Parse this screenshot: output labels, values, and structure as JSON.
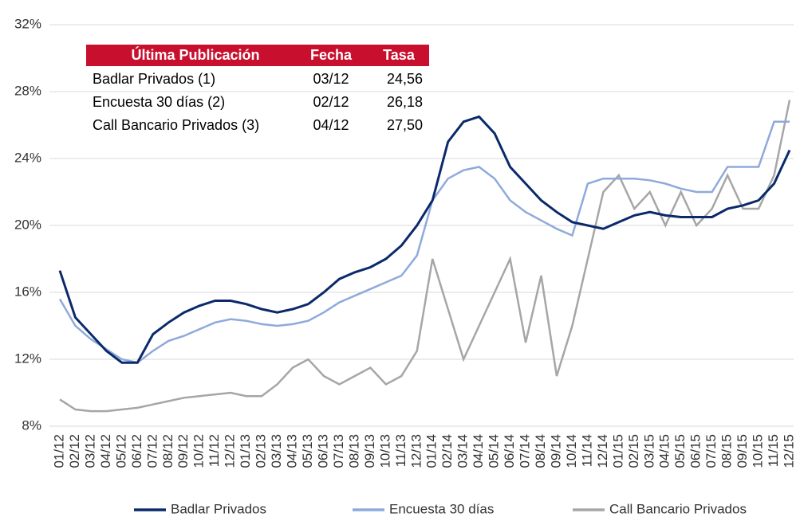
{
  "chart_data": {
    "type": "line",
    "x": [
      "01/12",
      "02/12",
      "03/12",
      "04/12",
      "05/12",
      "06/12",
      "07/12",
      "08/12",
      "09/12",
      "10/12",
      "11/12",
      "12/12",
      "01/13",
      "02/13",
      "03/13",
      "04/13",
      "05/13",
      "06/13",
      "07/13",
      "08/13",
      "09/13",
      "10/13",
      "11/13",
      "12/13",
      "01/14",
      "02/14",
      "03/14",
      "04/14",
      "05/14",
      "06/14",
      "07/14",
      "08/14",
      "09/14",
      "10/14",
      "11/14",
      "12/14",
      "01/15",
      "02/15",
      "03/15",
      "04/15",
      "05/15",
      "06/15",
      "07/15",
      "08/15",
      "09/15",
      "10/15",
      "11/15",
      "12/15"
    ],
    "series": [
      {
        "name": "Badlar Privados",
        "color": "#0b2a6b",
        "values": [
          17.3,
          14.5,
          13.5,
          12.5,
          11.8,
          11.8,
          13.5,
          14.2,
          14.8,
          15.2,
          15.5,
          15.5,
          15.3,
          15.0,
          14.8,
          15.0,
          15.3,
          16.0,
          16.8,
          17.2,
          17.5,
          18.0,
          18.8,
          20.0,
          21.5,
          25.0,
          26.2,
          26.5,
          25.5,
          23.5,
          22.5,
          21.5,
          20.8,
          20.2,
          20.0,
          19.8,
          20.2,
          20.6,
          20.8,
          20.6,
          20.5,
          20.5,
          20.5,
          21.0,
          21.2,
          21.5,
          22.5,
          24.5
        ]
      },
      {
        "name": "Encuesta 30 días",
        "color": "#8eaadb",
        "values": [
          15.6,
          14.0,
          13.2,
          12.6,
          12.0,
          11.8,
          12.5,
          13.1,
          13.4,
          13.8,
          14.2,
          14.4,
          14.3,
          14.1,
          14.0,
          14.1,
          14.3,
          14.8,
          15.4,
          15.8,
          16.2,
          16.6,
          17.0,
          18.2,
          21.5,
          22.8,
          23.3,
          23.5,
          22.8,
          21.5,
          20.8,
          20.3,
          19.8,
          19.4,
          22.5,
          22.8,
          22.8,
          22.8,
          22.7,
          22.5,
          22.2,
          22.0,
          22.0,
          23.5,
          23.5,
          23.5,
          26.2,
          26.2
        ]
      },
      {
        "name": "Call Bancario Privados",
        "color": "#a6a6a6",
        "values": [
          9.6,
          9.0,
          8.9,
          8.9,
          9.0,
          9.1,
          9.3,
          9.5,
          9.7,
          9.8,
          9.9,
          10.0,
          9.8,
          9.8,
          10.5,
          11.5,
          12.0,
          11.0,
          10.5,
          11.0,
          11.5,
          10.5,
          11.0,
          12.5,
          18.0,
          15.0,
          12.0,
          14.0,
          16.0,
          18.0,
          13.0,
          17.0,
          11.0,
          14.0,
          18.0,
          22.0,
          23.0,
          21.0,
          22.0,
          20.0,
          22.0,
          20.0,
          21.0,
          23.0,
          21.0,
          21.0,
          23.0,
          27.5
        ]
      }
    ],
    "ylim": [
      8,
      32
    ],
    "yticks": [
      {
        "value": 8,
        "label": "8%"
      },
      {
        "value": 12,
        "label": "12%"
      },
      {
        "value": 16,
        "label": "16%"
      },
      {
        "value": 20,
        "label": "20%"
      },
      {
        "value": 24,
        "label": "24%"
      },
      {
        "value": 28,
        "label": "28%"
      },
      {
        "value": 32,
        "label": "32%"
      }
    ],
    "grid": true,
    "legend": "bottom",
    "table": {
      "header_color": "#c8102e",
      "header": [
        "Última Publicación",
        "Fecha",
        "Tasa"
      ],
      "rows": [
        [
          "Badlar Privados (1)",
          "03/12",
          "24,56"
        ],
        [
          "Encuesta 30 días (2)",
          "02/12",
          "26,18"
        ],
        [
          "Call Bancario Privados (3)",
          "04/12",
          "27,50"
        ]
      ]
    }
  }
}
